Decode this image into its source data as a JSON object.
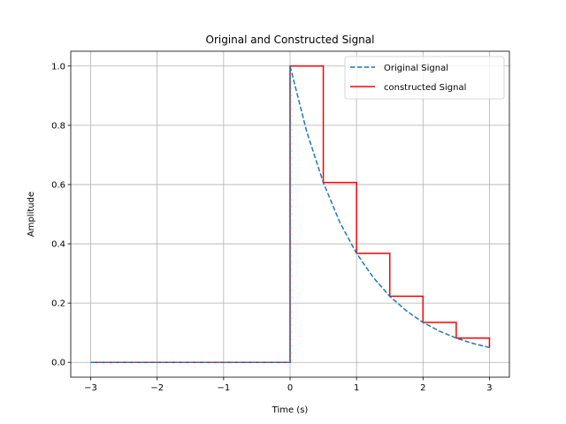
{
  "chart_data": {
    "type": "line",
    "title": "Original and Constructed Signal",
    "xlabel": "Time (s)",
    "ylabel": "Amplitude",
    "xlim": [
      -3.3,
      3.3
    ],
    "ylim": [
      -0.05,
      1.05
    ],
    "xticks": [
      -3,
      -2,
      -1,
      0,
      1,
      2,
      3
    ],
    "xtick_labels": [
      "−3",
      "−2",
      "−1",
      "0",
      "1",
      "2",
      "3"
    ],
    "yticks": [
      0.0,
      0.2,
      0.4,
      0.6,
      0.8,
      1.0
    ],
    "ytick_labels": [
      "0.0",
      "0.2",
      "0.4",
      "0.6",
      "0.8",
      "1.0"
    ],
    "grid": true,
    "legend_position": "top-right",
    "series": [
      {
        "name": "Original Signal",
        "style": "dashed",
        "color": "#1f77b4",
        "x": [
          -3,
          -2.5,
          -2,
          -1.5,
          -1,
          -0.5,
          0,
          0,
          0.25,
          0.5,
          0.75,
          1,
          1.25,
          1.5,
          1.75,
          2,
          2.25,
          2.5,
          2.75,
          3
        ],
        "y": [
          0,
          0,
          0,
          0,
          0,
          0,
          0,
          1,
          0.779,
          0.607,
          0.472,
          0.368,
          0.287,
          0.223,
          0.174,
          0.135,
          0.105,
          0.082,
          0.064,
          0.05
        ]
      },
      {
        "name": "constructed Signal",
        "style": "solid",
        "color": "#ff0000",
        "x": [
          -3,
          0,
          0,
          0.5,
          0.5,
          1,
          1,
          1.5,
          1.5,
          2,
          2,
          2.5,
          2.5,
          3,
          3
        ],
        "y": [
          0,
          0,
          1,
          1,
          0.607,
          0.607,
          0.368,
          0.368,
          0.223,
          0.223,
          0.135,
          0.135,
          0.082,
          0.082,
          0.05
        ]
      }
    ]
  }
}
